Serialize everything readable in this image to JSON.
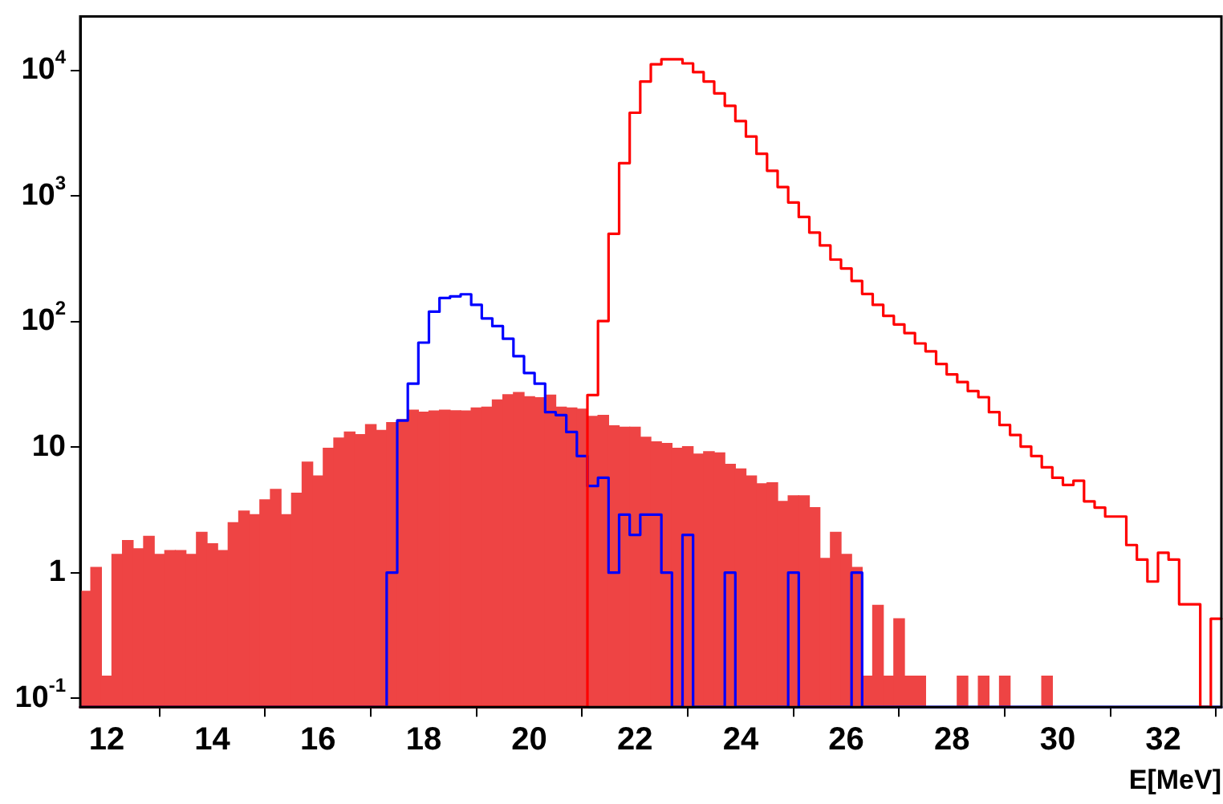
{
  "chart_data": {
    "type": "histogram",
    "xlabel": "E[MeV]",
    "log": "y",
    "xlim": [
      11.5,
      33.1
    ],
    "ylim": [
      0.085,
      27000
    ],
    "xticks": [
      12,
      14,
      16,
      18,
      20,
      22,
      24,
      26,
      28,
      30,
      32
    ],
    "yticks": [
      {
        "value": 0.1,
        "label": "10$^{-1}$"
      },
      1,
      10,
      {
        "value": 100,
        "label": "10$^{2}$"
      },
      {
        "value": 1000,
        "label": "10$^{3}$"
      },
      {
        "value": 10000,
        "label": "10$^{4}$"
      }
    ],
    "bins": [
      11.5,
      11.7,
      11.9,
      12.1,
      12.3,
      12.5,
      12.7,
      12.9,
      13.1,
      13.3,
      13.5,
      13.7,
      13.9,
      14.1,
      14.3,
      14.5,
      14.7,
      14.9,
      15.1,
      15.3,
      15.5,
      15.7,
      15.9,
      16.1,
      16.3,
      16.5,
      16.7,
      16.9,
      17.1,
      17.3,
      17.5,
      17.7,
      17.9,
      18.1,
      18.3,
      18.5,
      18.7,
      18.9,
      19.1,
      19.3,
      19.5,
      19.7,
      19.9,
      20.1,
      20.3,
      20.5,
      20.7,
      20.9,
      21.1,
      21.3,
      21.5,
      21.7,
      21.9,
      22.1,
      22.3,
      22.5,
      22.7,
      22.9,
      23.1,
      23.3,
      23.5,
      23.7,
      23.9,
      24.1,
      24.3,
      24.5,
      24.7,
      24.9,
      25.1,
      25.3,
      25.5,
      25.7,
      25.9,
      26.1,
      26.3,
      26.5,
      26.7,
      26.9,
      27.1,
      27.3,
      27.5,
      27.7,
      27.9,
      28.1,
      28.3,
      28.5,
      28.7,
      28.9,
      29.1,
      29.3,
      29.5,
      29.7,
      29.9,
      30.1,
      30.3,
      30.5,
      30.7,
      30.9,
      31.1,
      31.3,
      31.5,
      31.7,
      31.9,
      32.1,
      32.3,
      32.5,
      32.7,
      32.9,
      33.1
    ],
    "series": [
      {
        "color": "#ee4444",
        "values": [
          0.71,
          1.1,
          0.15,
          1.4,
          1.8,
          1.55,
          1.95,
          1.4,
          1.5,
          1.5,
          1.4,
          2.1,
          1.7,
          1.5,
          2.5,
          3.1,
          2.9,
          3.8,
          4.6,
          2.9,
          4.3,
          7.6,
          5.9,
          9.8,
          11.8,
          13.2,
          12.6,
          15.1,
          13.6,
          15.7,
          16.6,
          19.7,
          19,
          19.4,
          19.7,
          19.5,
          19.4,
          20.5,
          20.8,
          23.8,
          26.2,
          27.2,
          25.2,
          24.8,
          26,
          20.8,
          20.5,
          20.1,
          17.6,
          17.9,
          14.8,
          14.4,
          14.4,
          12,
          11,
          10.7,
          9.8,
          10.1,
          8.8,
          9.2,
          9.0,
          7.3,
          6.7,
          5.9,
          5.1,
          5.2,
          3.7,
          4.1,
          4.1,
          3.3,
          1.3,
          2.1,
          1.4,
          1.1,
          0.15,
          0.55,
          0.15,
          0.43,
          0.15,
          0.15,
          null,
          null,
          null,
          0.15,
          null,
          0.15,
          null,
          0.15,
          null,
          null,
          null,
          0.15,
          null,
          null,
          null,
          null,
          null,
          null,
          null,
          null,
          null,
          null,
          null,
          null,
          null,
          null,
          null,
          null
        ]
      },
      {
        "color": "#0000ff",
        "values": [
          null,
          null,
          null,
          null,
          null,
          null,
          null,
          null,
          null,
          null,
          null,
          null,
          null,
          null,
          null,
          null,
          null,
          null,
          null,
          null,
          null,
          null,
          null,
          null,
          null,
          null,
          null,
          null,
          null,
          1.0,
          16.3,
          32,
          68,
          120,
          154,
          159,
          165,
          136,
          106,
          92,
          73,
          53,
          39,
          32,
          19,
          18,
          13.2,
          8.5,
          4.9,
          5.7,
          1.0,
          2.9,
          2.0,
          2.9,
          2.9,
          1.0,
          null,
          2.0,
          null,
          null,
          null,
          1.0,
          null,
          null,
          null,
          null,
          null,
          1.0,
          null,
          null,
          null,
          null,
          null,
          1.0,
          null,
          null,
          null,
          null,
          null,
          null,
          null,
          null,
          null,
          null,
          null,
          null,
          null,
          null,
          null,
          null,
          null,
          null,
          null,
          null,
          null,
          null,
          null,
          null,
          null,
          null,
          null,
          null,
          null,
          null,
          null,
          null,
          null,
          null
        ]
      },
      {
        "color": "#ff0000",
        "values": [
          null,
          null,
          null,
          null,
          null,
          null,
          null,
          null,
          null,
          null,
          null,
          null,
          null,
          null,
          null,
          null,
          null,
          null,
          null,
          null,
          null,
          null,
          null,
          null,
          null,
          null,
          null,
          null,
          null,
          null,
          null,
          null,
          null,
          null,
          null,
          null,
          null,
          null,
          null,
          null,
          null,
          null,
          null,
          null,
          null,
          null,
          null,
          null,
          26,
          101,
          501,
          1830,
          4610,
          8180,
          11200,
          12300,
          12300,
          11400,
          9700,
          8180,
          6580,
          5240,
          3960,
          2980,
          2170,
          1590,
          1180,
          889,
          681,
          512,
          404,
          312,
          265,
          211,
          166,
          136,
          111,
          95,
          81,
          67,
          58,
          46,
          38,
          33,
          28,
          25,
          19,
          15,
          12.5,
          10.1,
          8.5,
          6.9,
          5.7,
          5.0,
          5.4,
          3.7,
          3.3,
          2.8,
          2.8,
          1.66,
          1.27,
          0.85,
          1.44,
          1.27,
          0.56,
          0.56,
          null,
          0.43
        ]
      }
    ]
  }
}
